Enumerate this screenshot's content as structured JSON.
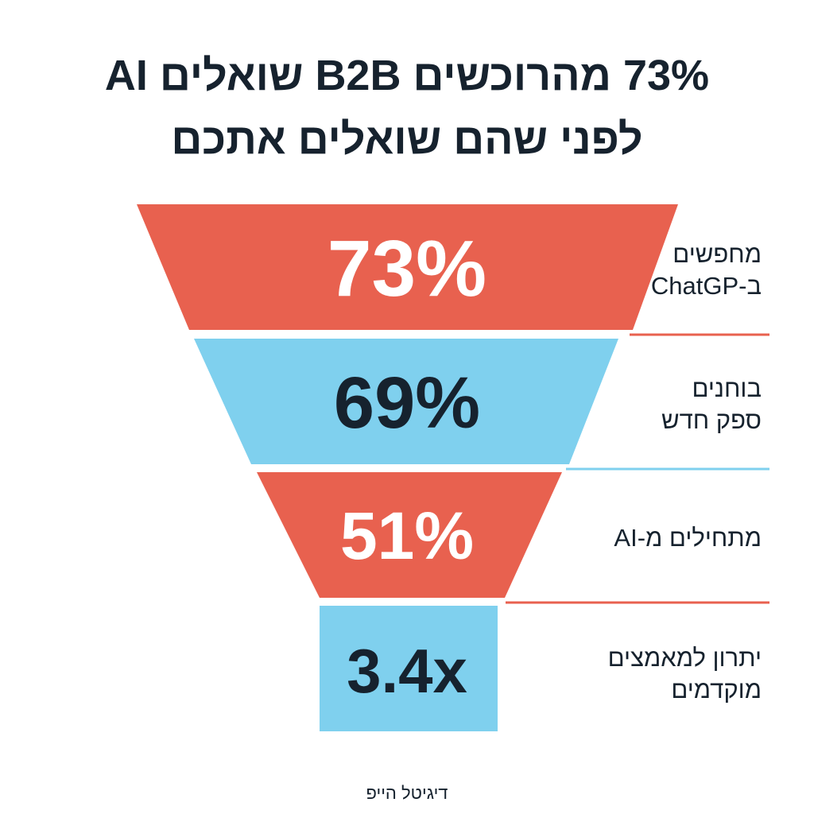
{
  "title": {
    "line1": "73% מהרוכשים B2B שואלים AI",
    "line2": "לפני שהם שואלים אתכם"
  },
  "colors": {
    "red": "#e8614f",
    "blue": "#7fd0ee",
    "text_dark": "#16222e",
    "text_light": "#ffffff"
  },
  "stages": [
    {
      "value": "73%",
      "label_lines": [
        "מחפשים",
        "ב-ChatGP"
      ],
      "color": "red",
      "text_color": "text_light"
    },
    {
      "value": "69%",
      "label_lines": [
        "בוחנים",
        "ספק חדש"
      ],
      "color": "blue",
      "text_color": "text_dark"
    },
    {
      "value": "51%",
      "label_lines": [
        "מתחילים מ-AI"
      ],
      "color": "red",
      "text_color": "text_light"
    },
    {
      "value": "3.4x",
      "label_lines": [
        "יתרון למאמצים",
        "מוקדמים"
      ],
      "color": "blue",
      "text_color": "text_dark"
    }
  ],
  "brand": "דיגיטל הייפ"
}
